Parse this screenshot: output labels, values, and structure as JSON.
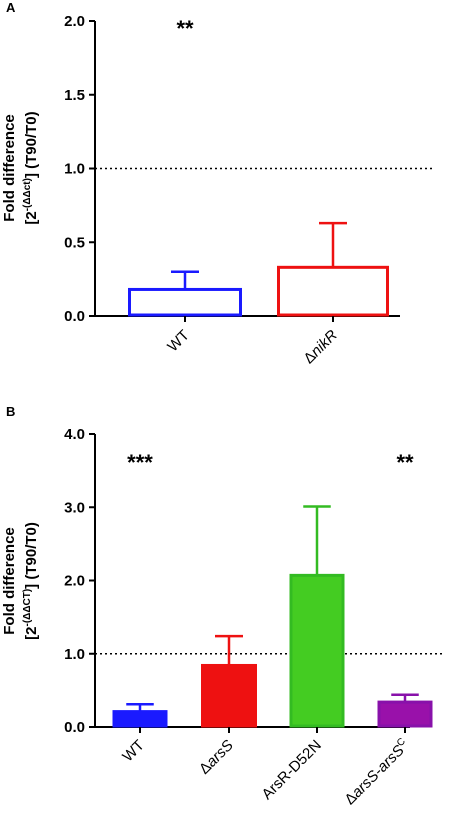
{
  "chart_data": [
    {
      "panel": "A",
      "type": "bar",
      "categories": [
        "WT",
        "ΔnikR"
      ],
      "category_parts": [
        [
          {
            "t": "WT",
            "i": false
          }
        ],
        [
          {
            "t": "Δ",
            "i": false
          },
          {
            "t": "nikR",
            "i": true
          }
        ]
      ],
      "values": [
        0.18,
        0.33
      ],
      "errors": [
        0.12,
        0.3
      ],
      "colors": [
        "#1a1aff",
        "#ee1111"
      ],
      "fills": [
        "none",
        "none"
      ],
      "significance": [
        "**",
        ""
      ],
      "ylim": [
        0,
        2.0
      ],
      "yticks": [
        0,
        0.5,
        1.0,
        1.5,
        2.0
      ],
      "ytick_labels": [
        "0.0",
        "0.5",
        "1.0",
        "1.5",
        "2.0"
      ],
      "reference_line": 1.0,
      "ylabel_line1": "Fold difference",
      "ylabel_line2_parts": [
        {
          "t": "[2",
          "s": false
        },
        {
          "t": "-(ΔΔct)",
          "s": true
        },
        {
          "t": "] (T90/T0)",
          "s": false
        }
      ]
    },
    {
      "panel": "B",
      "type": "bar",
      "categories": [
        "WT",
        "ΔarsS",
        "ArsR-D52N",
        "ΔarsS-arsSC"
      ],
      "category_parts": [
        [
          {
            "t": "WT",
            "i": false
          }
        ],
        [
          {
            "t": "Δ",
            "i": false
          },
          {
            "t": "arsS",
            "i": true
          }
        ],
        [
          {
            "t": "ArsR-D52N",
            "i": false
          }
        ],
        [
          {
            "t": "Δ",
            "i": false
          },
          {
            "t": "arsS-arsS",
            "i": true
          },
          {
            "t": "C",
            "i": false,
            "sup": true
          }
        ]
      ],
      "values": [
        0.21,
        0.84,
        2.07,
        0.34
      ],
      "errors": [
        0.1,
        0.4,
        0.94,
        0.1
      ],
      "colors": [
        "#1a1aff",
        "#ee1111",
        "#33bb22",
        "#8811aa"
      ],
      "fills": [
        "#1a1aff",
        "#ee1111",
        "#44cc22",
        "#9911aa"
      ],
      "significance": [
        "***",
        "",
        "",
        "**"
      ],
      "ylim": [
        0,
        4.0
      ],
      "yticks": [
        0,
        1.0,
        2.0,
        3.0,
        4.0
      ],
      "ytick_labels": [
        "0.0",
        "1.0",
        "2.0",
        "3.0",
        "4.0"
      ],
      "reference_line": 1.0,
      "ylabel_line1": "Fold difference",
      "ylabel_line2_parts": [
        {
          "t": "[2",
          "s": false
        },
        {
          "t": "-(ΔΔCT)",
          "s": true
        },
        {
          "t": "] (T90/T0)",
          "s": false
        }
      ]
    }
  ]
}
